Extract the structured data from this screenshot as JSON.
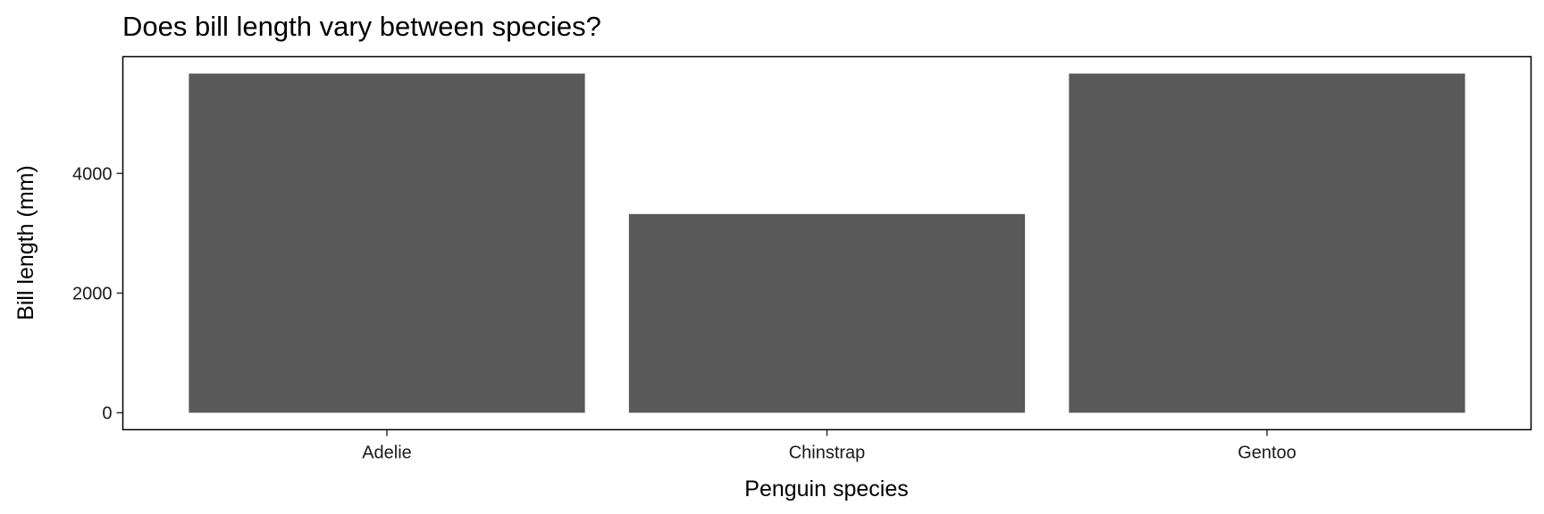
{
  "chart_data": {
    "type": "bar",
    "title": "Does bill length vary between species?",
    "xlabel": "Penguin species",
    "ylabel": "Bill length (mm)",
    "categories": [
      "Adelie",
      "Chinstrap",
      "Gentoo"
    ],
    "values": [
      5668,
      3321,
      5668
    ],
    "ylim": [
      -283,
      5951
    ],
    "yticks": [
      0,
      2000,
      4000
    ],
    "bar_color": "#595959",
    "grid": false,
    "legend": "none"
  }
}
